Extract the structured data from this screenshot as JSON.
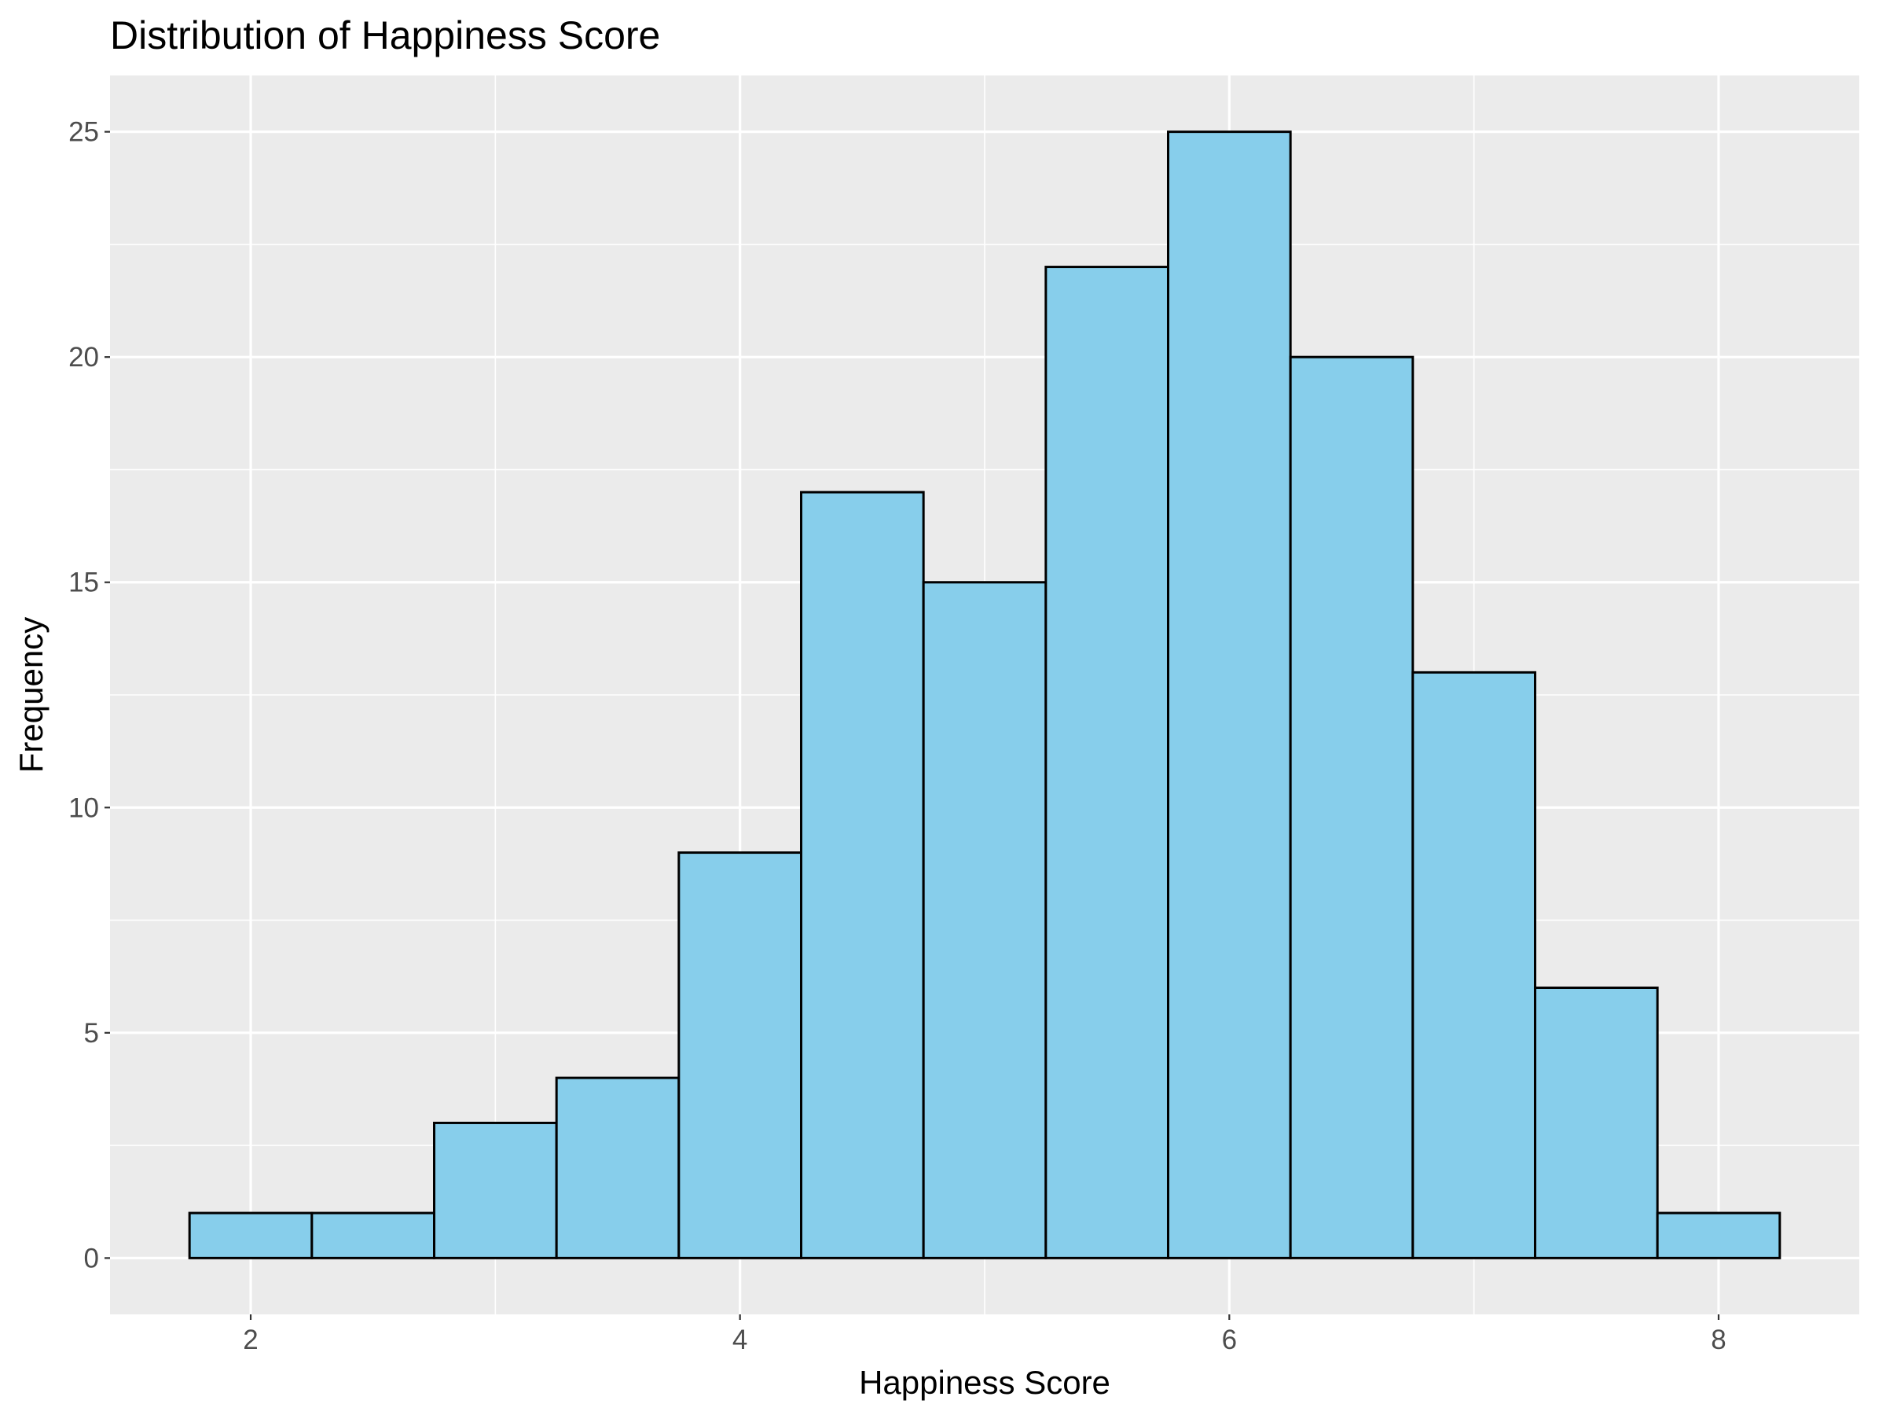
{
  "chart_data": {
    "type": "bar",
    "title": "Distribution of Happiness Score",
    "xlabel": "Happiness Score",
    "ylabel": "Frequency",
    "bin_width": 0.5,
    "bins": [
      {
        "x_start": 1.75,
        "x_end": 2.25,
        "count": 1
      },
      {
        "x_start": 2.25,
        "x_end": 2.75,
        "count": 1
      },
      {
        "x_start": 2.75,
        "x_end": 3.25,
        "count": 3
      },
      {
        "x_start": 3.25,
        "x_end": 3.75,
        "count": 4
      },
      {
        "x_start": 3.75,
        "x_end": 4.25,
        "count": 9
      },
      {
        "x_start": 4.25,
        "x_end": 4.75,
        "count": 17
      },
      {
        "x_start": 4.75,
        "x_end": 5.25,
        "count": 15
      },
      {
        "x_start": 5.25,
        "x_end": 5.75,
        "count": 22
      },
      {
        "x_start": 5.75,
        "x_end": 6.25,
        "count": 25
      },
      {
        "x_start": 6.25,
        "x_end": 6.75,
        "count": 20
      },
      {
        "x_start": 6.75,
        "x_end": 7.25,
        "count": 13
      },
      {
        "x_start": 7.25,
        "x_end": 7.75,
        "count": 6
      },
      {
        "x_start": 7.75,
        "x_end": 8.25,
        "count": 1
      }
    ],
    "xlim": [
      1.425,
      8.575
    ],
    "ylim": [
      -1.25,
      26.25
    ],
    "x_ticks": [
      2,
      4,
      6,
      8
    ],
    "y_ticks": [
      0,
      5,
      10,
      15,
      20,
      25
    ],
    "grid": true,
    "legend": "none",
    "colors": {
      "bar_fill": "#87CEEB",
      "bar_stroke": "#000000",
      "panel_background": "#EBEBEB",
      "grid": "#FFFFFF"
    }
  }
}
